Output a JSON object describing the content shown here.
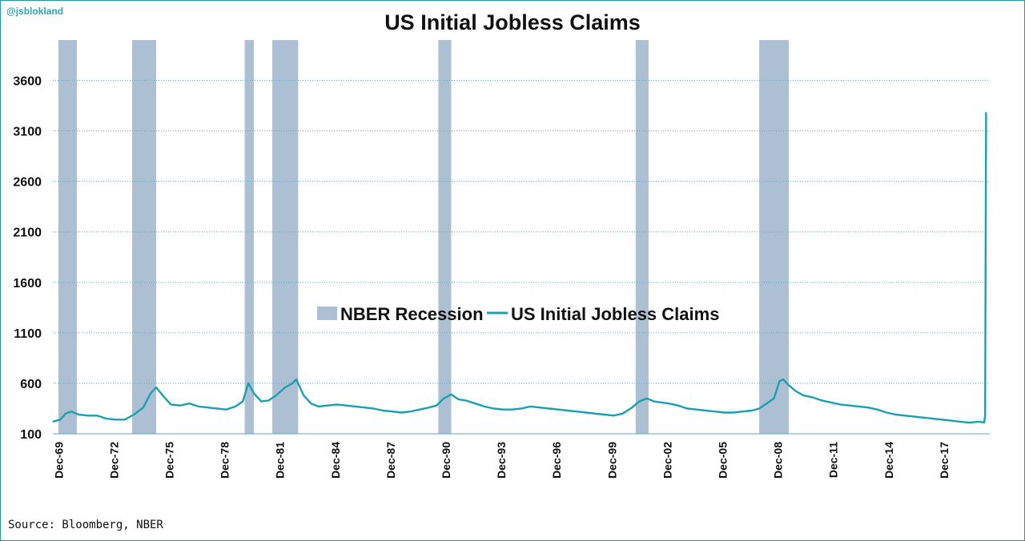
{
  "handle": "@jsblokland",
  "source": "Source: Bloomberg, NBER",
  "colors": {
    "line": "#1aa0b0",
    "recession": "#adbfd2",
    "border": "#1f9aaa"
  },
  "chart_data": {
    "type": "line",
    "title": "US Initial Jobless Claims",
    "xlabel": "",
    "ylabel": "",
    "ylim": [
      100,
      4000
    ],
    "yticks": [
      100,
      600,
      1100,
      1600,
      2100,
      2600,
      3100,
      3600
    ],
    "xlim": [
      1969.6,
      2020.4
    ],
    "xticks": [
      {
        "label": "Dec-69",
        "x": 1969.92
      },
      {
        "label": "Dec-72",
        "x": 1972.92
      },
      {
        "label": "Dec-75",
        "x": 1975.92
      },
      {
        "label": "Dec-78",
        "x": 1978.92
      },
      {
        "label": "Dec-81",
        "x": 1981.92
      },
      {
        "label": "Dec-84",
        "x": 1984.92
      },
      {
        "label": "Dec-87",
        "x": 1987.92
      },
      {
        "label": "Dec-90",
        "x": 1990.92
      },
      {
        "label": "Dec-93",
        "x": 1993.92
      },
      {
        "label": "Dec-96",
        "x": 1996.92
      },
      {
        "label": "Dec-99",
        "x": 1999.92
      },
      {
        "label": "Dec-02",
        "x": 2002.92
      },
      {
        "label": "Dec-05",
        "x": 2005.92
      },
      {
        "label": "Dec-08",
        "x": 2008.92
      },
      {
        "label": "Dec-11",
        "x": 2011.92
      },
      {
        "label": "Dec-14",
        "x": 2014.92
      },
      {
        "label": "Dec-17",
        "x": 2017.92
      }
    ],
    "legend": [
      {
        "name": "NBER Recession",
        "kind": "bar"
      },
      {
        "name": "US Initial Jobless Claims",
        "kind": "line"
      }
    ],
    "legend_position": "center",
    "grid": true,
    "recessions": [
      {
        "start": 1969.9,
        "end": 1970.9
      },
      {
        "start": 1973.9,
        "end": 1975.2
      },
      {
        "start": 1980.0,
        "end": 1980.5
      },
      {
        "start": 1981.5,
        "end": 1982.9
      },
      {
        "start": 1990.5,
        "end": 1991.2
      },
      {
        "start": 2001.2,
        "end": 2001.9
      },
      {
        "start": 2007.9,
        "end": 2009.5
      }
    ],
    "series": [
      {
        "name": "US Initial Jobless Claims",
        "x": [
          1969.6,
          1970.0,
          1970.3,
          1970.6,
          1971.0,
          1971.5,
          1972.0,
          1972.5,
          1973.0,
          1973.5,
          1974.0,
          1974.5,
          1974.9,
          1975.2,
          1975.6,
          1976.0,
          1976.5,
          1977.0,
          1977.5,
          1978.0,
          1978.5,
          1979.0,
          1979.5,
          1979.9,
          1980.2,
          1980.5,
          1980.9,
          1981.3,
          1981.7,
          1982.2,
          1982.6,
          1982.8,
          1983.2,
          1983.6,
          1984.0,
          1984.5,
          1985.0,
          1985.5,
          1986.0,
          1986.5,
          1987.0,
          1987.5,
          1988.0,
          1988.5,
          1989.0,
          1989.5,
          1990.0,
          1990.4,
          1990.8,
          1991.2,
          1991.6,
          1992.0,
          1992.5,
          1993.0,
          1993.5,
          1994.0,
          1994.5,
          1995.0,
          1995.5,
          1996.0,
          1996.5,
          1997.0,
          1997.5,
          1998.0,
          1998.5,
          1999.0,
          1999.5,
          2000.0,
          2000.5,
          2001.0,
          2001.4,
          2001.8,
          2002.2,
          2002.6,
          2003.0,
          2003.5,
          2004.0,
          2004.5,
          2005.0,
          2005.5,
          2006.0,
          2006.5,
          2007.0,
          2007.5,
          2007.9,
          2008.3,
          2008.7,
          2009.0,
          2009.2,
          2009.5,
          2009.9,
          2010.3,
          2010.8,
          2011.3,
          2011.8,
          2012.3,
          2012.8,
          2013.3,
          2013.8,
          2014.3,
          2014.8,
          2015.3,
          2015.8,
          2016.3,
          2016.8,
          2017.3,
          2017.8,
          2018.3,
          2018.8,
          2019.3,
          2019.8,
          2020.1,
          2020.15,
          2020.2
        ],
        "values": [
          220,
          240,
          300,
          320,
          290,
          280,
          280,
          250,
          240,
          240,
          290,
          360,
          500,
          560,
          470,
          390,
          380,
          400,
          370,
          360,
          350,
          340,
          370,
          420,
          600,
          500,
          420,
          430,
          480,
          560,
          600,
          640,
          480,
          400,
          370,
          380,
          390,
          380,
          370,
          360,
          350,
          330,
          320,
          310,
          320,
          340,
          360,
          380,
          450,
          490,
          440,
          430,
          400,
          370,
          350,
          340,
          340,
          350,
          370,
          360,
          350,
          340,
          330,
          320,
          310,
          300,
          290,
          280,
          300,
          360,
          420,
          450,
          420,
          410,
          400,
          380,
          350,
          340,
          330,
          320,
          310,
          310,
          320,
          330,
          350,
          400,
          450,
          620,
          640,
          580,
          520,
          480,
          460,
          430,
          410,
          390,
          380,
          370,
          360,
          340,
          310,
          290,
          280,
          270,
          260,
          250,
          240,
          230,
          220,
          210,
          220,
          212,
          281,
          3283
        ]
      }
    ]
  }
}
